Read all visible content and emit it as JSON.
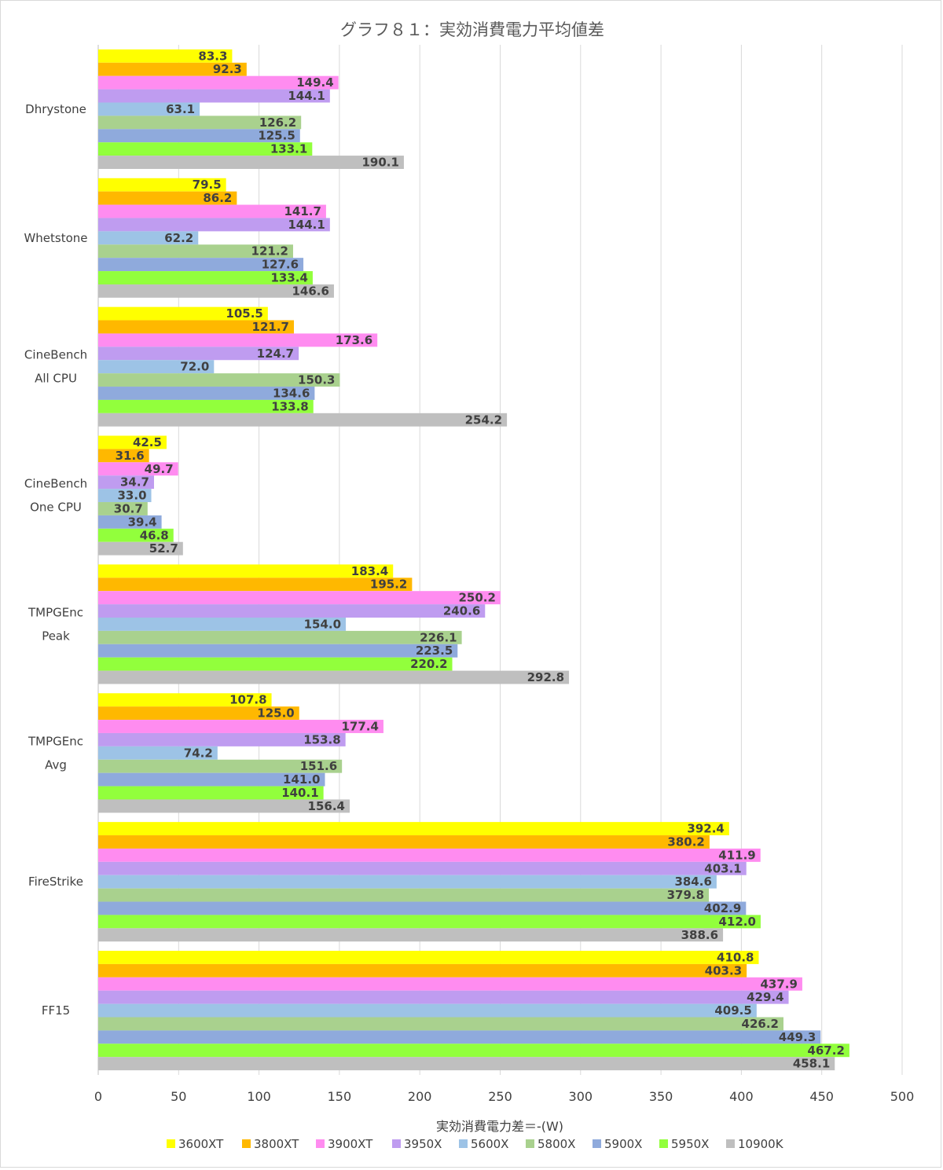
{
  "chart_data": {
    "type": "bar",
    "orientation": "horizontal",
    "title": "グラフ８１：実効消費電力平均値差",
    "xlabel": "実効消費電力差＝-(W)",
    "ylabel": "",
    "xlim": [
      0,
      500
    ],
    "xticks": [
      0,
      50,
      100,
      150,
      200,
      250,
      300,
      350,
      400,
      450,
      500
    ],
    "grid": "vertical",
    "legend_position": "bottom",
    "categories": [
      [
        "Dhrystone"
      ],
      [
        "Whetstone"
      ],
      [
        "CineBench",
        "All CPU"
      ],
      [
        "CineBench",
        "One CPU"
      ],
      [
        "TMPGEnc",
        "Peak"
      ],
      [
        "TMPGEnc",
        "Avg"
      ],
      [
        "FireStrike"
      ],
      [
        "FF15"
      ]
    ],
    "series": [
      {
        "name": "3600XT",
        "color": "#ffff00",
        "values": [
          83.3,
          79.5,
          105.5,
          42.5,
          183.4,
          107.8,
          392.4,
          410.8
        ]
      },
      {
        "name": "3800XT",
        "color": "#ffb800",
        "values": [
          92.3,
          86.2,
          121.7,
          31.6,
          195.2,
          125.0,
          380.2,
          403.3
        ]
      },
      {
        "name": "3900XT",
        "color": "#ff8cf0",
        "values": [
          149.4,
          141.7,
          173.6,
          49.7,
          250.2,
          177.4,
          411.9,
          437.9
        ]
      },
      {
        "name": "3950X",
        "color": "#bf9cf0",
        "values": [
          144.1,
          144.1,
          124.7,
          34.7,
          240.6,
          153.8,
          403.1,
          429.4
        ]
      },
      {
        "name": "5600X",
        "color": "#9dc3e6",
        "values": [
          63.1,
          62.2,
          72.0,
          33.0,
          154.0,
          74.2,
          384.6,
          409.5
        ]
      },
      {
        "name": "5800X",
        "color": "#a9d18e",
        "values": [
          126.2,
          121.2,
          150.3,
          30.7,
          226.1,
          151.6,
          379.8,
          426.2
        ]
      },
      {
        "name": "5900X",
        "color": "#8faadc",
        "values": [
          125.5,
          127.6,
          134.6,
          39.4,
          223.5,
          141.0,
          402.9,
          449.3
        ]
      },
      {
        "name": "5950X",
        "color": "#92ff3c",
        "values": [
          133.1,
          133.4,
          133.8,
          46.8,
          220.2,
          140.1,
          412.0,
          467.2
        ]
      },
      {
        "name": "10900K",
        "color": "#bfbfbf",
        "values": [
          190.1,
          146.6,
          254.2,
          52.7,
          292.8,
          156.4,
          388.6,
          458.1
        ]
      }
    ]
  }
}
